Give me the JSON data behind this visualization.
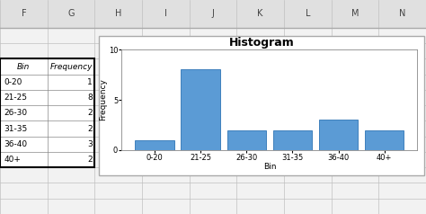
{
  "categories": [
    "0-20",
    "21-25",
    "26-30",
    "31-35",
    "36-40",
    "40+"
  ],
  "values": [
    1,
    8,
    2,
    2,
    3,
    2
  ],
  "bar_color": "#5B9BD5",
  "bar_edgecolor": "#2E74B5",
  "title": "Histogram",
  "xlabel": "Bin",
  "ylabel": "Frequency",
  "ylim": [
    0,
    10
  ],
  "yticks": [
    0,
    5,
    10
  ],
  "title_fontsize": 9,
  "label_fontsize": 6.5,
  "tick_fontsize": 6,
  "background_color": "#FFFFFF",
  "figsize": [
    4.74,
    2.38
  ],
  "dpi": 100,
  "col_letters": [
    "F",
    "G",
    "H",
    "I",
    "J",
    "K",
    "L",
    "M",
    "N"
  ],
  "table_bins": [
    "Bin",
    "0-20",
    "21-25",
    "26-30",
    "31-35",
    "36-40",
    "40+"
  ],
  "table_freqs": [
    "Frequency",
    "1",
    "8",
    "2",
    "2",
    "3",
    "2"
  ],
  "spreadsheet_bg": "#F2F2F2",
  "cell_line_color": "#C0C0C0",
  "header_row_color": "#FFFFFF",
  "table_border_color": "#000000",
  "col_header_bg": "#D9D9D9"
}
